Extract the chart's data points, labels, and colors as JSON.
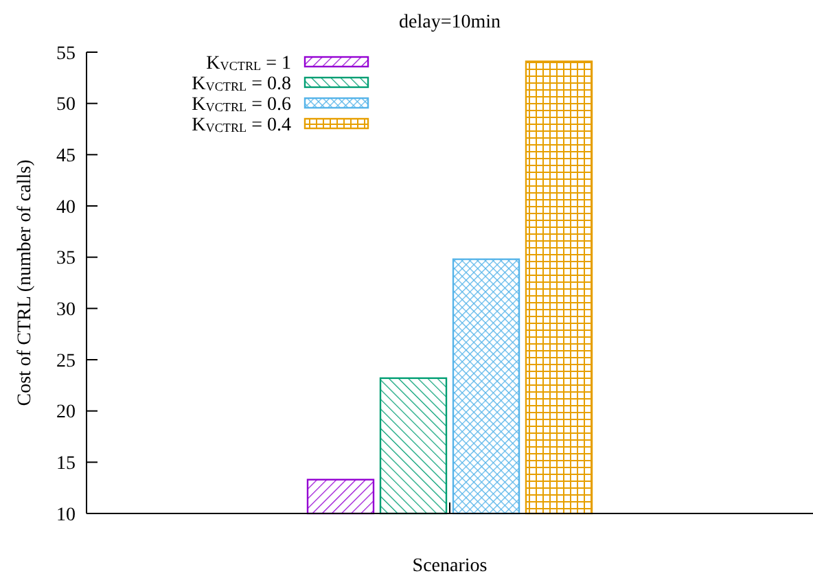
{
  "chart_data": {
    "type": "bar",
    "title": "delay=10min",
    "xlabel": "Scenarios",
    "ylabel": "Cost of CTRL (number of calls)",
    "categories": [
      null
    ],
    "series": [
      {
        "name": "K$_{VCTRL}$ = 1",
        "color": "#9400d3",
        "values": [
          13.3
        ]
      },
      {
        "name": "K$_{VCTRL}$ = 0.8",
        "color": "#009e73",
        "values": [
          23.2
        ]
      },
      {
        "name": "K$_{VCTRL}$ = 0.6",
        "color": "#56b4e9",
        "values": [
          34.8
        ]
      },
      {
        "name": "K$_{VCTRL}$ = 0.4",
        "color": "#e69f00",
        "values": [
          54.1
        ]
      }
    ],
    "ylim": [
      10,
      55
    ],
    "yticks": [
      10,
      15,
      20,
      25,
      30,
      35,
      40,
      45,
      50,
      55
    ],
    "grid": false,
    "legend": "top left"
  }
}
